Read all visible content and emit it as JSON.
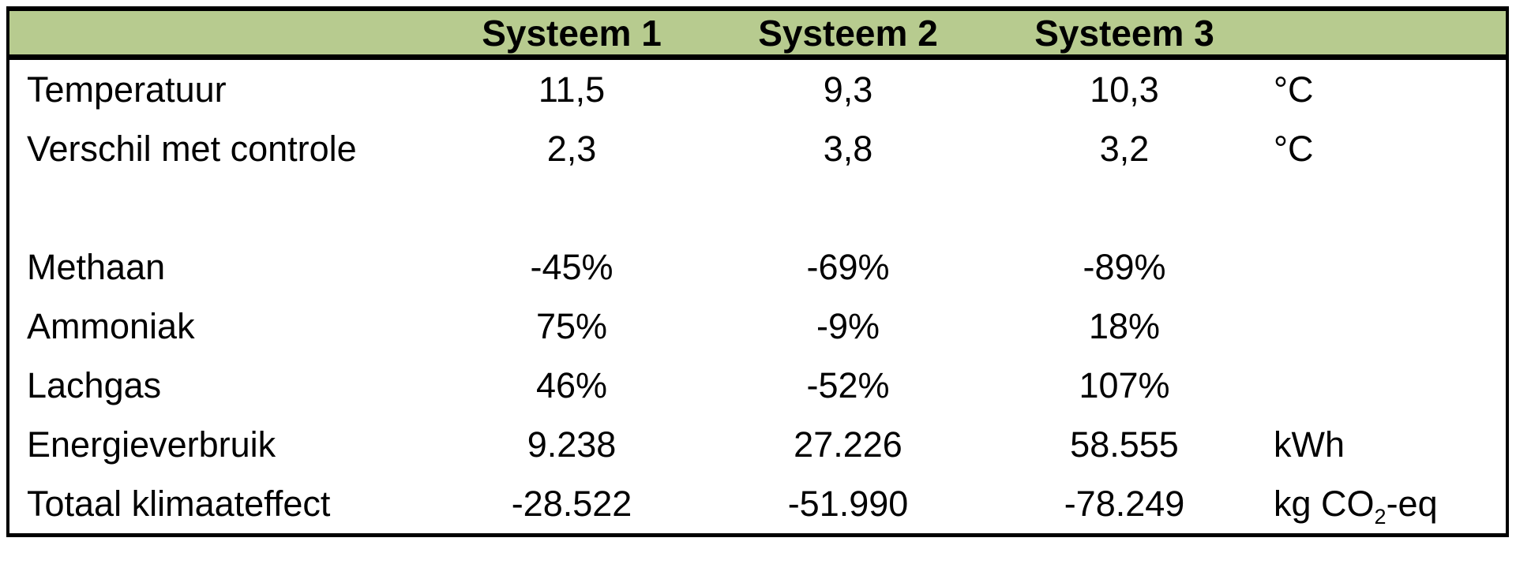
{
  "table": {
    "headers": [
      "Systeem 1",
      "Systeem 2",
      "Systeem 3"
    ],
    "colors": {
      "header_bg": "#b7cb8f",
      "border": "#000000",
      "text": "#000000",
      "background": "#ffffff"
    },
    "rows": [
      {
        "label": "Temperatuur",
        "values": [
          "11,5",
          "9,3",
          "10,3"
        ],
        "unit": [
          {
            "text": "°C"
          }
        ]
      },
      {
        "label": "Verschil met controle",
        "values": [
          "2,3",
          "3,8",
          "3,2"
        ],
        "unit": [
          {
            "text": "°C"
          }
        ]
      },
      {
        "label": "",
        "values": [
          "",
          "",
          ""
        ],
        "unit": []
      },
      {
        "label": "Methaan",
        "values": [
          "-45%",
          "-69%",
          "-89%"
        ],
        "unit": []
      },
      {
        "label": "Ammoniak",
        "values": [
          "75%",
          "-9%",
          "18%"
        ],
        "unit": []
      },
      {
        "label": "Lachgas",
        "values": [
          "46%",
          "-52%",
          "107%"
        ],
        "unit": []
      },
      {
        "label": "Energieverbruik",
        "values": [
          "9.238",
          "27.226",
          "58.555"
        ],
        "unit": [
          {
            "text": "kWh"
          }
        ]
      },
      {
        "label": "Totaal klimaateffect",
        "values": [
          "-28.522",
          "-51.990",
          "-78.249"
        ],
        "unit": [
          {
            "text": "kg CO"
          },
          {
            "text": "2",
            "subscript": true
          },
          {
            "text": "-eq"
          }
        ]
      }
    ]
  },
  "chart_data": {
    "type": "table",
    "columns": [
      "",
      "Systeem 1",
      "Systeem 2",
      "Systeem 3",
      ""
    ],
    "rows": [
      [
        "Temperatuur",
        "11,5",
        "9,3",
        "10,3",
        "°C"
      ],
      [
        "Verschil met controle",
        "2,3",
        "3,8",
        "3,2",
        "°C"
      ],
      [
        "",
        "",
        "",
        "",
        ""
      ],
      [
        "Methaan",
        "-45%",
        "-69%",
        "-89%",
        ""
      ],
      [
        "Ammoniak",
        "75%",
        "-9%",
        "18%",
        ""
      ],
      [
        "Lachgas",
        "46%",
        "-52%",
        "107%",
        ""
      ],
      [
        "Energieverbruik",
        "9.238",
        "27.226",
        "58.555",
        "kWh"
      ],
      [
        "Totaal klimaateffect",
        "-28.522",
        "-51.990",
        "-78.249",
        "kg CO2-eq"
      ]
    ],
    "numeric_values": {
      "Temperatuur": [
        11.5,
        9.3,
        10.3
      ],
      "Verschil met controle": [
        2.3,
        3.8,
        3.2
      ],
      "Methaan_pct": [
        -45,
        -69,
        -89
      ],
      "Ammoniak_pct": [
        75,
        -9,
        18
      ],
      "Lachgas_pct": [
        46,
        -52,
        107
      ],
      "Energieverbruik_kWh": [
        9238,
        27226,
        58555
      ],
      "Totaal_klimaateffect_kgCO2eq": [
        -28522,
        -51990,
        -78249
      ]
    },
    "layout": {
      "header_fill": "#b7cb8f",
      "outer_border": true,
      "inner_gridlines": false
    }
  }
}
